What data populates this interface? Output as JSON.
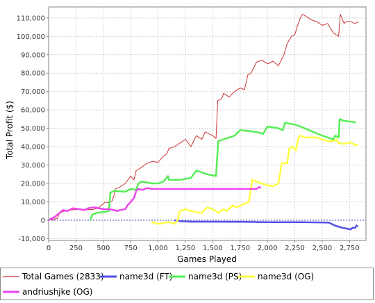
{
  "chart_data": {
    "type": "line",
    "title": "",
    "xlabel": "Games Played",
    "ylabel": "Total Profit ($)",
    "xlim": [
      0,
      2900
    ],
    "ylim": [
      -11000,
      116000
    ],
    "x_ticks": [
      0,
      250,
      500,
      750,
      1000,
      1250,
      1500,
      1750,
      2000,
      2250,
      2500,
      2750
    ],
    "x_tick_labels": [
      "0",
      "250",
      "500",
      "750",
      "1,000",
      "1,250",
      "1,500",
      "1,750",
      "2,000",
      "2,250",
      "2,500",
      "2,750"
    ],
    "y_ticks": [
      -10000,
      0,
      10000,
      20000,
      30000,
      40000,
      50000,
      60000,
      70000,
      80000,
      90000,
      100000,
      110000
    ],
    "y_tick_labels": [
      "-10,000",
      "0",
      "10,000",
      "20,000",
      "30,000",
      "40,000",
      "50,000",
      "60,000",
      "70,000",
      "80,000",
      "90,000",
      "100,000",
      "110,000"
    ],
    "grid": true,
    "zero_line": true,
    "legend_position": "bottom",
    "series": [
      {
        "name": "Total Games (2833)",
        "color": "#cc3333",
        "points": [
          [
            0,
            0
          ],
          [
            80,
            1000
          ],
          [
            100,
            4000
          ],
          [
            150,
            5000
          ],
          [
            200,
            5500
          ],
          [
            300,
            6000
          ],
          [
            400,
            5800
          ],
          [
            450,
            6500
          ],
          [
            500,
            9000
          ],
          [
            520,
            10000
          ],
          [
            540,
            9500
          ],
          [
            580,
            10500
          ],
          [
            600,
            14000
          ],
          [
            610,
            17000
          ],
          [
            650,
            18000
          ],
          [
            700,
            20000
          ],
          [
            750,
            24000
          ],
          [
            780,
            22000
          ],
          [
            800,
            27000
          ],
          [
            830,
            28000
          ],
          [
            900,
            31000
          ],
          [
            950,
            32000
          ],
          [
            1000,
            31500
          ],
          [
            1050,
            35000
          ],
          [
            1080,
            36000
          ],
          [
            1100,
            39000
          ],
          [
            1150,
            40000
          ],
          [
            1200,
            42000
          ],
          [
            1250,
            44000
          ],
          [
            1300,
            40000
          ],
          [
            1350,
            46000
          ],
          [
            1400,
            44000
          ],
          [
            1430,
            48000
          ],
          [
            1500,
            46000
          ],
          [
            1530,
            44500
          ],
          [
            1545,
            65000
          ],
          [
            1580,
            66000
          ],
          [
            1600,
            69000
          ],
          [
            1650,
            67000
          ],
          [
            1700,
            70000
          ],
          [
            1750,
            72000
          ],
          [
            1790,
            71000
          ],
          [
            1820,
            79000
          ],
          [
            1850,
            80000
          ],
          [
            1900,
            86000
          ],
          [
            1950,
            87000
          ],
          [
            2000,
            85000
          ],
          [
            2050,
            86500
          ],
          [
            2100,
            84000
          ],
          [
            2150,
            90000
          ],
          [
            2180,
            96000
          ],
          [
            2220,
            100000
          ],
          [
            2250,
            101000
          ],
          [
            2270,
            105000
          ],
          [
            2300,
            110000
          ],
          [
            2320,
            112000
          ],
          [
            2350,
            111000
          ],
          [
            2400,
            109000
          ],
          [
            2450,
            108000
          ],
          [
            2500,
            106000
          ],
          [
            2550,
            107000
          ],
          [
            2600,
            102000
          ],
          [
            2650,
            100000
          ],
          [
            2665,
            112000
          ],
          [
            2700,
            107000
          ],
          [
            2720,
            108000
          ],
          [
            2760,
            108000
          ],
          [
            2800,
            107000
          ],
          [
            2833,
            108000
          ]
        ]
      },
      {
        "name": "name3d (FT)",
        "color": "#5050e6",
        "points": [
          [
            1150,
            0
          ],
          [
            1200,
            -500
          ],
          [
            1300,
            -800
          ],
          [
            1500,
            -800
          ],
          [
            1800,
            -900
          ],
          [
            2000,
            -1100
          ],
          [
            2300,
            -1100
          ],
          [
            2560,
            -1300
          ],
          [
            2620,
            -3000
          ],
          [
            2680,
            -4000
          ],
          [
            2720,
            -4500
          ],
          [
            2760,
            -5000
          ],
          [
            2780,
            -4000
          ],
          [
            2800,
            -4200
          ],
          [
            2813,
            -2800
          ],
          [
            2825,
            -3500
          ]
        ]
      },
      {
        "name": "name3d (PS)",
        "color": "#55ee55",
        "points": [
          [
            380,
            0
          ],
          [
            400,
            3000
          ],
          [
            440,
            4000
          ],
          [
            500,
            4500
          ],
          [
            550,
            5000
          ],
          [
            565,
            15000
          ],
          [
            600,
            16000
          ],
          [
            700,
            15500
          ],
          [
            750,
            17000
          ],
          [
            800,
            16500
          ],
          [
            820,
            20000
          ],
          [
            850,
            21000
          ],
          [
            950,
            20000
          ],
          [
            1000,
            20000
          ],
          [
            1050,
            21000
          ],
          [
            1090,
            24000
          ],
          [
            1100,
            22000
          ],
          [
            1200,
            22000
          ],
          [
            1300,
            23000
          ],
          [
            1350,
            27000
          ],
          [
            1450,
            25000
          ],
          [
            1530,
            24000
          ],
          [
            1550,
            43000
          ],
          [
            1600,
            44000
          ],
          [
            1700,
            46000
          ],
          [
            1750,
            49000
          ],
          [
            1900,
            48000
          ],
          [
            1960,
            47000
          ],
          [
            2000,
            51000
          ],
          [
            2100,
            50000
          ],
          [
            2140,
            49000
          ],
          [
            2160,
            53000
          ],
          [
            2250,
            52000
          ],
          [
            2300,
            51000
          ],
          [
            2500,
            46000
          ],
          [
            2600,
            44000
          ],
          [
            2620,
            46000
          ],
          [
            2650,
            45000
          ],
          [
            2660,
            55000
          ],
          [
            2700,
            54000
          ],
          [
            2780,
            53500
          ],
          [
            2810,
            53000
          ]
        ]
      },
      {
        "name": "name3d (OG)",
        "color": "#ffff44",
        "points": [
          [
            940,
            -1000
          ],
          [
            1000,
            -2000
          ],
          [
            1050,
            -1500
          ],
          [
            1100,
            -1000
          ],
          [
            1150,
            -2000
          ],
          [
            1180,
            0
          ],
          [
            1200,
            5000
          ],
          [
            1250,
            6000
          ],
          [
            1300,
            5000
          ],
          [
            1400,
            4000
          ],
          [
            1450,
            7000
          ],
          [
            1500,
            6000
          ],
          [
            1550,
            4000
          ],
          [
            1600,
            6000
          ],
          [
            1630,
            5000
          ],
          [
            1680,
            8000
          ],
          [
            1720,
            7000
          ],
          [
            1790,
            9000
          ],
          [
            1830,
            10000
          ],
          [
            1860,
            22000
          ],
          [
            1900,
            21000
          ],
          [
            1950,
            20000
          ],
          [
            2000,
            19000
          ],
          [
            2050,
            18500
          ],
          [
            2100,
            20000
          ],
          [
            2130,
            31000
          ],
          [
            2180,
            31000
          ],
          [
            2200,
            39000
          ],
          [
            2230,
            40000
          ],
          [
            2260,
            38000
          ],
          [
            2280,
            44000
          ],
          [
            2300,
            46000
          ],
          [
            2350,
            45000
          ],
          [
            2450,
            45000
          ],
          [
            2500,
            44000
          ],
          [
            2550,
            43000
          ],
          [
            2600,
            43000
          ],
          [
            2630,
            44000
          ],
          [
            2650,
            42000
          ],
          [
            2700,
            41500
          ],
          [
            2750,
            42500
          ],
          [
            2800,
            41000
          ],
          [
            2830,
            41000
          ]
        ]
      },
      {
        "name": "andriushjke (OG)",
        "color": "#ee44ee",
        "points": [
          [
            0,
            0
          ],
          [
            60,
            2000
          ],
          [
            100,
            4000
          ],
          [
            130,
            5500
          ],
          [
            170,
            5000
          ],
          [
            220,
            6500
          ],
          [
            280,
            6000
          ],
          [
            330,
            5500
          ],
          [
            360,
            6500
          ],
          [
            420,
            7000
          ],
          [
            500,
            6000
          ],
          [
            560,
            6000
          ],
          [
            630,
            5000
          ],
          [
            650,
            5500
          ],
          [
            700,
            6000
          ],
          [
            720,
            8000
          ],
          [
            750,
            10000
          ],
          [
            780,
            12000
          ],
          [
            800,
            16000
          ],
          [
            820,
            17000
          ],
          [
            860,
            16500
          ],
          [
            900,
            17500
          ],
          [
            950,
            17000
          ],
          [
            1000,
            17000
          ],
          [
            1500,
            17000
          ],
          [
            1900,
            17000
          ],
          [
            1920,
            18000
          ],
          [
            1940,
            17500
          ]
        ]
      }
    ]
  }
}
